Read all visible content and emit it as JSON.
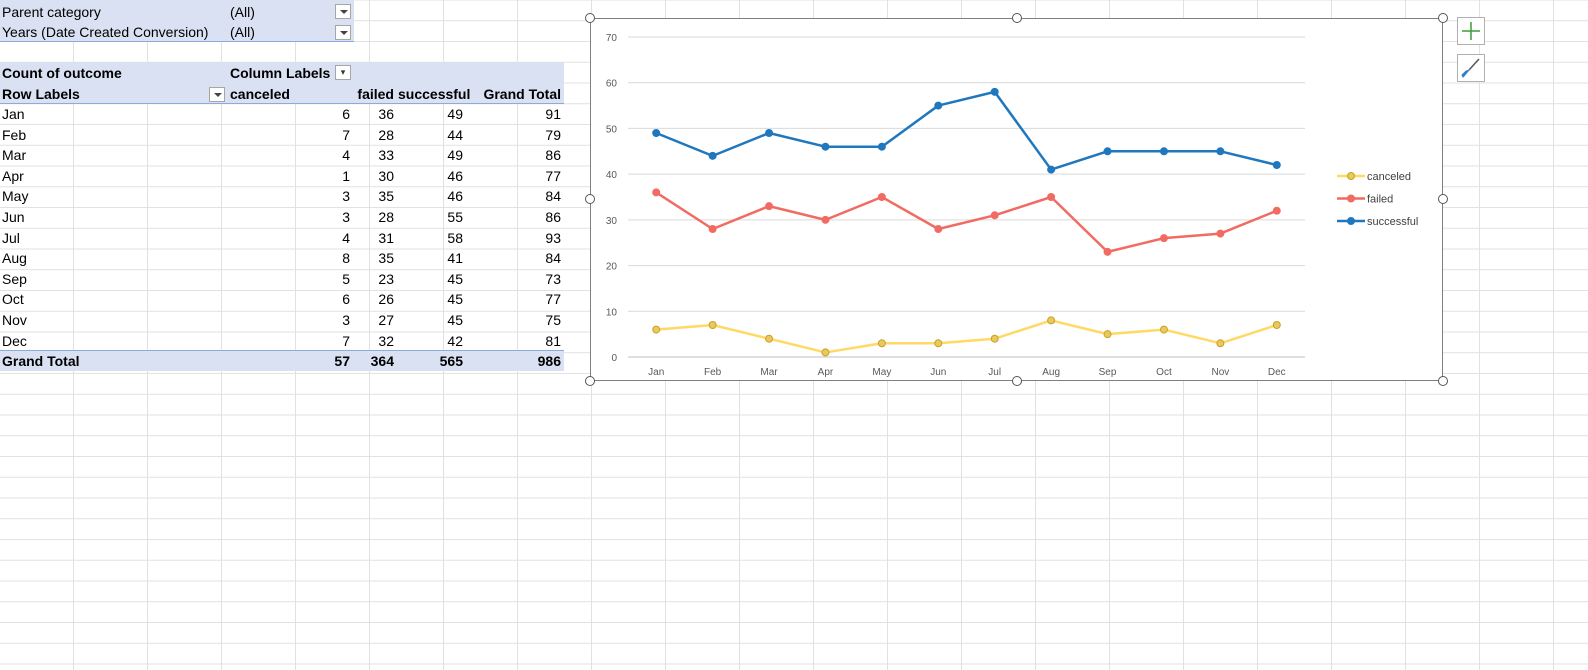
{
  "filters": [
    {
      "label": "Parent category",
      "value": "(All)"
    },
    {
      "label": "Years (Date Created Conversion)",
      "value": "(All)"
    }
  ],
  "pivot": {
    "measure": "Count of outcome",
    "column_labels": "Column Labels",
    "row_labels": "Row Labels",
    "columns": [
      "canceled",
      "failed",
      "successful",
      "Grand Total"
    ],
    "rows": [
      {
        "label": "Jan",
        "values": [
          6,
          36,
          49,
          91
        ]
      },
      {
        "label": "Feb",
        "values": [
          7,
          28,
          44,
          79
        ]
      },
      {
        "label": "Mar",
        "values": [
          4,
          33,
          49,
          86
        ]
      },
      {
        "label": "Apr",
        "values": [
          1,
          30,
          46,
          77
        ]
      },
      {
        "label": "May",
        "values": [
          3,
          35,
          46,
          84
        ]
      },
      {
        "label": "Jun",
        "values": [
          3,
          28,
          55,
          86
        ]
      },
      {
        "label": "Jul",
        "values": [
          4,
          31,
          58,
          93
        ]
      },
      {
        "label": "Aug",
        "values": [
          8,
          35,
          41,
          84
        ]
      },
      {
        "label": "Sep",
        "values": [
          5,
          23,
          45,
          73
        ]
      },
      {
        "label": "Oct",
        "values": [
          6,
          26,
          45,
          77
        ]
      },
      {
        "label": "Nov",
        "values": [
          3,
          27,
          45,
          75
        ]
      },
      {
        "label": "Dec",
        "values": [
          7,
          32,
          42,
          81
        ]
      }
    ],
    "grand_total": {
      "label": "Grand Total",
      "values": [
        57,
        364,
        565,
        986
      ]
    }
  },
  "side_buttons": [
    {
      "name": "chart-elements-button",
      "icon": "plus-icon"
    },
    {
      "name": "chart-styles-button",
      "icon": "paintbrush-icon"
    }
  ],
  "chart_data": {
    "type": "line",
    "categories": [
      "Jan",
      "Feb",
      "Mar",
      "Apr",
      "May",
      "Jun",
      "Jul",
      "Aug",
      "Sep",
      "Oct",
      "Nov",
      "Dec"
    ],
    "series": [
      {
        "name": "canceled",
        "color": "#ffd966",
        "marker": "#c9a227",
        "values": [
          6,
          7,
          4,
          1,
          3,
          3,
          4,
          8,
          5,
          6,
          3,
          7
        ]
      },
      {
        "name": "failed",
        "color": "#f26b62",
        "marker": "#f26b62",
        "values": [
          36,
          28,
          33,
          30,
          35,
          28,
          31,
          35,
          23,
          26,
          27,
          32
        ]
      },
      {
        "name": "successful",
        "color": "#1f77be",
        "marker": "#1f77be",
        "values": [
          49,
          44,
          49,
          46,
          46,
          55,
          58,
          41,
          45,
          45,
          45,
          42
        ]
      }
    ],
    "y_ticks": [
      0,
      10,
      20,
      30,
      40,
      50,
      60,
      70
    ],
    "ylim": [
      0,
      70
    ],
    "grid": true,
    "legend_position": "right"
  }
}
